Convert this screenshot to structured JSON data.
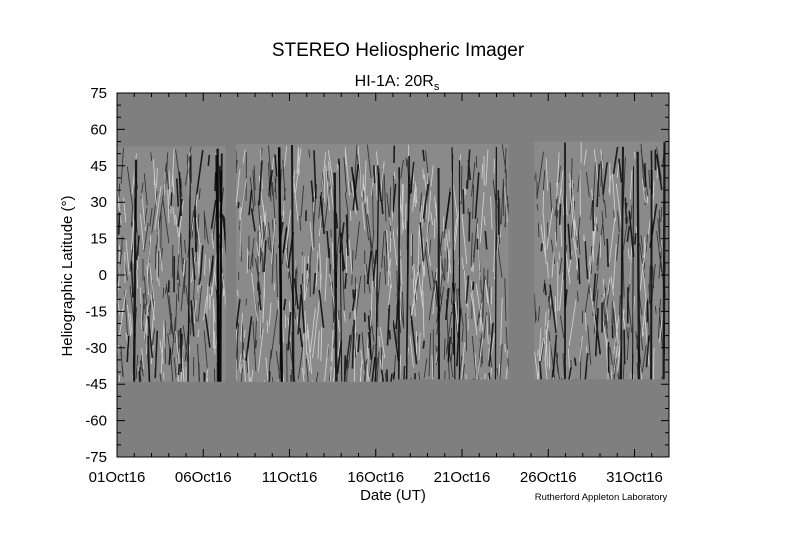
{
  "chart_data": {
    "type": "heatmap",
    "title": "STEREO Heliospheric Imager",
    "subtitle_main": "HI-1A: 20R",
    "subtitle_sub": "s",
    "xlabel": "Date (UT)",
    "ylabel": "Heliographic Latitude (°)",
    "credit": "Rutherford Appleton Laboratory",
    "xlim": [
      0,
      32
    ],
    "ylim": [
      -75,
      75
    ],
    "x_ticks": [
      {
        "value": 0,
        "label": "01Oct16"
      },
      {
        "value": 5,
        "label": "06Oct16"
      },
      {
        "value": 10,
        "label": "11Oct16"
      },
      {
        "value": 15,
        "label": "16Oct16"
      },
      {
        "value": 20,
        "label": "21Oct16"
      },
      {
        "value": 25,
        "label": "26Oct16"
      },
      {
        "value": 30,
        "label": "31Oct16"
      }
    ],
    "y_ticks": [
      {
        "value": 75,
        "label": "75"
      },
      {
        "value": 60,
        "label": "60"
      },
      {
        "value": 45,
        "label": "45"
      },
      {
        "value": 30,
        "label": "30"
      },
      {
        "value": 15,
        "label": "15"
      },
      {
        "value": 0,
        "label": "0"
      },
      {
        "value": -15,
        "label": "-15"
      },
      {
        "value": -30,
        "label": "-30"
      },
      {
        "value": -45,
        "label": "-45"
      },
      {
        "value": -60,
        "label": "-60"
      },
      {
        "value": -75,
        "label": "-75"
      }
    ],
    "background_color": "#7f7f7f",
    "data_segments": [
      {
        "x_start": 0.0,
        "x_end": 6.3,
        "lat_min": -44,
        "lat_max": 53
      },
      {
        "x_start": 6.9,
        "x_end": 16.0,
        "lat_min": -44,
        "lat_max": 54
      },
      {
        "x_start": 16.0,
        "x_end": 22.7,
        "lat_min": -43,
        "lat_max": 54
      },
      {
        "x_start": 24.2,
        "x_end": 31.8,
        "lat_min": -43,
        "lat_max": 55
      }
    ]
  }
}
